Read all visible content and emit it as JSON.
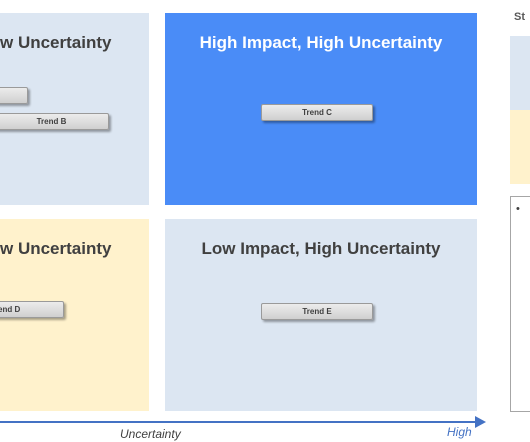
{
  "quadrants": {
    "top_left": {
      "title": "w Uncertainty"
    },
    "top_right": {
      "title": "High Impact, High Uncertainty"
    },
    "bottom_left": {
      "title": "w Uncertainty"
    },
    "bottom_right": {
      "title": "Low Impact, High Uncertainty"
    }
  },
  "trends": {
    "a": {
      "label": ""
    },
    "b": {
      "label": "Trend B"
    },
    "c": {
      "label": "Trend C"
    },
    "d": {
      "label": "end D"
    },
    "e": {
      "label": "Trend E"
    }
  },
  "axis": {
    "label": "Uncertainty",
    "high_label": "High",
    "color": "#4472c4"
  },
  "side_panel": {
    "title": "St",
    "bullet": "•"
  },
  "colors": {
    "light_blue": "#dce6f2",
    "strong_blue": "#4a8cf7",
    "light_yellow": "#fff2cc"
  }
}
